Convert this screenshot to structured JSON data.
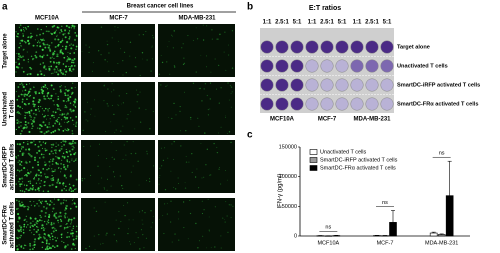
{
  "panel_a": {
    "label": "a",
    "group_header": "Breast cancer cell lines",
    "columns": [
      "MCF10A",
      "MCF-7",
      "MDA-MB-231"
    ],
    "rows": [
      [
        "Target alone"
      ],
      [
        "Unactivated",
        "T cells"
      ],
      [
        "SmartDC-iRFP",
        "activated T cells"
      ],
      [
        "SmartDC-FRα",
        "activated T cells"
      ]
    ]
  },
  "panel_b": {
    "label": "b",
    "title": "E:T ratios",
    "ratios": [
      "1:1",
      "2.5:1",
      "5:1"
    ],
    "columns": [
      "MCF10A",
      "MCF-7",
      "MDA-MB-231"
    ],
    "rows": [
      "Target alone",
      "Unactivated T cells",
      "SmartDC-iRFP activated T cells",
      "SmartDC-FRα activated T cells"
    ]
  },
  "chart_data": {
    "label": "c",
    "type": "bar",
    "y_label": "IFN-γ (pg/ml)",
    "categories": [
      "MCF10A",
      "MCF-7",
      "MDA-MB-231"
    ],
    "series": [
      {
        "name": "Unactivated T cells",
        "color": "#ffffff",
        "values": [
          500,
          800,
          5000
        ],
        "errors": [
          300,
          400,
          1500
        ]
      },
      {
        "name": "SmartDC-iRFP activated T cells",
        "color": "#9a9a9a",
        "values": [
          300,
          600,
          2500
        ],
        "errors": [
          200,
          300,
          1000
        ]
      },
      {
        "name": "SmartDC-FRα activated T cells",
        "color": "#000000",
        "values": [
          700,
          23000,
          68000
        ],
        "errors": [
          500,
          20000,
          58000
        ]
      }
    ],
    "ylim": [
      0,
      150000
    ],
    "yticks": [
      0,
      50000,
      100000,
      150000
    ],
    "annotations": [
      "ns",
      "ns",
      "ns"
    ]
  }
}
